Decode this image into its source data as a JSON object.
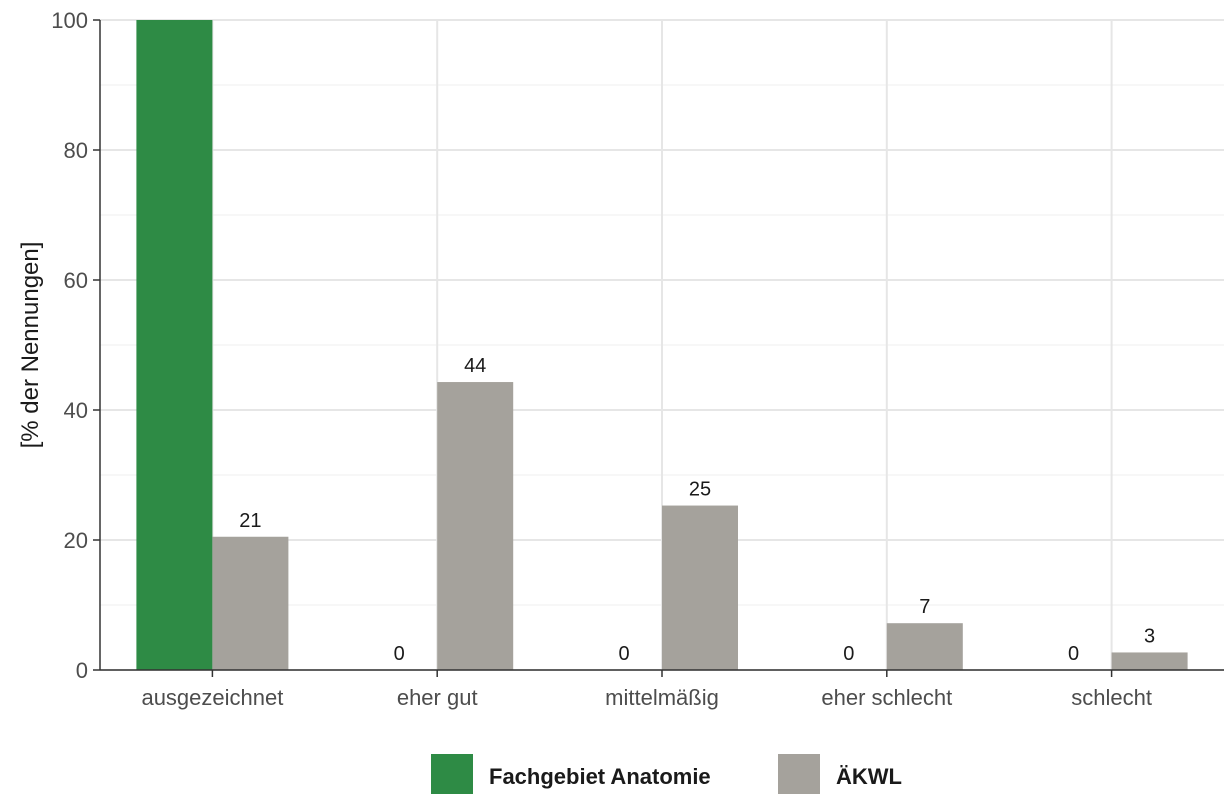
{
  "chart_data": {
    "type": "bar",
    "categories": [
      "ausgezeichnet",
      "eher gut",
      "mittelmäßig",
      "eher schlecht",
      "schlecht"
    ],
    "series": [
      {
        "name": "Fachgebiet Anatomie",
        "color": "#2e8b45",
        "values": [
          100,
          0,
          0,
          0,
          0
        ],
        "labels": [
          "",
          "0",
          "0",
          "0",
          "0"
        ]
      },
      {
        "name": "ÄKWL",
        "color": "#a5a29c",
        "values": [
          20.5,
          44.3,
          25.3,
          7.2,
          2.7
        ],
        "labels": [
          "21",
          "44",
          "25",
          "7",
          "3"
        ]
      }
    ],
    "ylabel": "[% der Nennungen]",
    "xlabel": "",
    "ylim": [
      0,
      100
    ],
    "yticks": [
      0,
      20,
      40,
      60,
      80,
      100
    ],
    "grid": true,
    "legend_position": "bottom"
  }
}
